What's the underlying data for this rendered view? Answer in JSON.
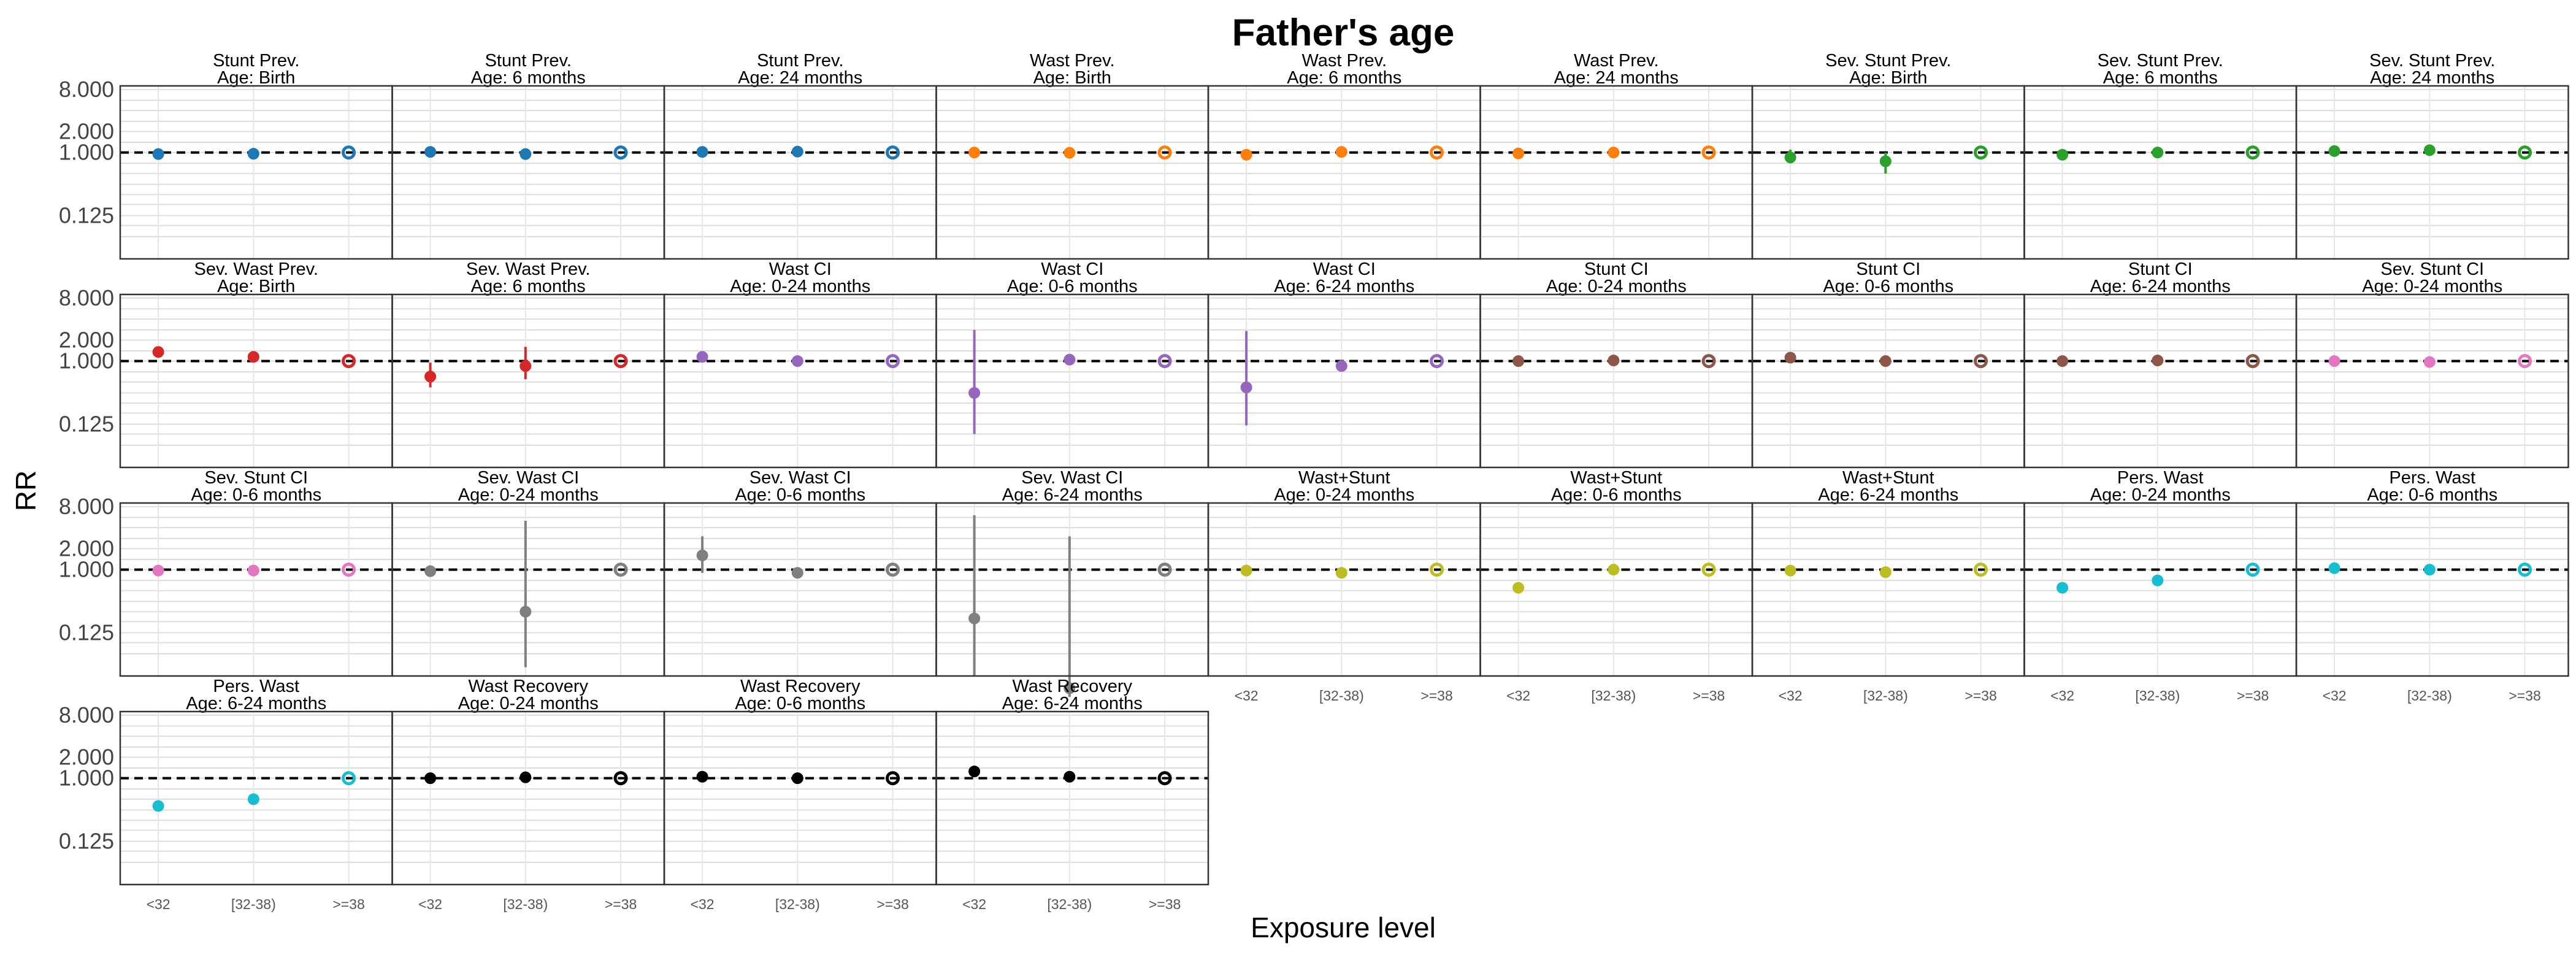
{
  "title": "Father's age",
  "ylabel": "RR",
  "xlabel": "Exposure level",
  "y_tick_labels": [
    "8.000",
    "2.000",
    "1.000",
    "0.125"
  ],
  "colors": {
    "blue": "#1F77B4",
    "orange": "#FF7F0E",
    "green": "#2CA02C",
    "red": "#D62728",
    "purple": "#9467BD",
    "brown": "#8C564B",
    "pink": "#E377C2",
    "gray": "#7F7F7F",
    "olive": "#BCBD22",
    "cyan": "#17BECF",
    "black": "#000000"
  },
  "chart_data": {
    "type": "scatter",
    "description_type": "faceted point-range (RR with 95% CI)",
    "categories": [
      "<32",
      "[32-38)",
      ">=38"
    ],
    "reference_category": ">=38",
    "reference_line": 1,
    "y_scale": "log2",
    "ylim": [
      0.03,
      9
    ],
    "grid": true,
    "facets": [
      {
        "title1": "Stunt Prev.",
        "title2": "Age: Birth",
        "color": "blue",
        "points": [
          {
            "x": "<32",
            "y": 0.95
          },
          {
            "x": "[32-38)",
            "y": 0.96
          },
          {
            "x": ">=38",
            "y": 1
          }
        ]
      },
      {
        "title1": "Stunt Prev.",
        "title2": "Age: 6 months",
        "color": "blue",
        "points": [
          {
            "x": "<32",
            "y": 1.02
          },
          {
            "x": "[32-38)",
            "y": 0.95
          },
          {
            "x": ">=38",
            "y": 1
          }
        ]
      },
      {
        "title1": "Stunt Prev.",
        "title2": "Age: 24 months",
        "color": "blue",
        "points": [
          {
            "x": "<32",
            "y": 1.02
          },
          {
            "x": "[32-38)",
            "y": 1.03
          },
          {
            "x": ">=38",
            "y": 1
          }
        ]
      },
      {
        "title1": "Wast Prev.",
        "title2": "Age: Birth",
        "color": "orange",
        "points": [
          {
            "x": "<32",
            "y": 1.0
          },
          {
            "x": "[32-38)",
            "y": 0.99
          },
          {
            "x": ">=38",
            "y": 1
          }
        ]
      },
      {
        "title1": "Wast Prev.",
        "title2": "Age: 6 months",
        "color": "orange",
        "points": [
          {
            "x": "<32",
            "y": 0.93
          },
          {
            "x": "[32-38)",
            "y": 1.02
          },
          {
            "x": ">=38",
            "y": 1
          }
        ]
      },
      {
        "title1": "Wast Prev.",
        "title2": "Age: 24 months",
        "color": "orange",
        "points": [
          {
            "x": "<32",
            "y": 0.97
          },
          {
            "x": "[32-38)",
            "y": 1.0
          },
          {
            "x": ">=38",
            "y": 1
          }
        ]
      },
      {
        "title1": "Sev. Stunt Prev.",
        "title2": "Age: Birth",
        "color": "green",
        "points": [
          {
            "x": "<32",
            "y": 0.85,
            "lo": 0.7,
            "hi": 1.1
          },
          {
            "x": "[32-38)",
            "y": 0.75,
            "lo": 0.5,
            "hi": 1.0
          },
          {
            "x": ">=38",
            "y": 1
          }
        ]
      },
      {
        "title1": "Sev. Stunt Prev.",
        "title2": "Age: 6 months",
        "color": "green",
        "points": [
          {
            "x": "<32",
            "y": 0.93
          },
          {
            "x": "[32-38)",
            "y": 1.0
          },
          {
            "x": ">=38",
            "y": 1
          }
        ]
      },
      {
        "title1": "Sev. Stunt Prev.",
        "title2": "Age: 24 months",
        "color": "green",
        "points": [
          {
            "x": "<32",
            "y": 1.05
          },
          {
            "x": "[32-38)",
            "y": 1.08
          },
          {
            "x": ">=38",
            "y": 1
          }
        ]
      },
      {
        "title1": "Sev. Wast Prev.",
        "title2": "Age: Birth",
        "color": "red",
        "points": [
          {
            "x": "<32",
            "y": 1.35
          },
          {
            "x": "[32-38)",
            "y": 1.15
          },
          {
            "x": ">=38",
            "y": 1
          }
        ]
      },
      {
        "title1": "Sev. Wast Prev.",
        "title2": "Age: 6 months",
        "color": "red",
        "points": [
          {
            "x": "<32",
            "y": 0.6,
            "lo": 0.42,
            "hi": 0.95
          },
          {
            "x": "[32-38)",
            "y": 0.85,
            "lo": 0.55,
            "hi": 1.6
          },
          {
            "x": ">=38",
            "y": 1
          }
        ]
      },
      {
        "title1": "Wast CI",
        "title2": "Age: 0-24 months",
        "color": "purple",
        "points": [
          {
            "x": "<32",
            "y": 1.15
          },
          {
            "x": "[32-38)",
            "y": 1.0
          },
          {
            "x": ">=38",
            "y": 1
          }
        ]
      },
      {
        "title1": "Wast CI",
        "title2": "Age: 0-6 months",
        "color": "purple",
        "points": [
          {
            "x": "<32",
            "y": 0.35,
            "lo": 0.09,
            "hi": 2.8
          },
          {
            "x": "[32-38)",
            "y": 1.05
          },
          {
            "x": ">=38",
            "y": 1
          }
        ]
      },
      {
        "title1": "Wast CI",
        "title2": "Age: 6-24 months",
        "color": "purple",
        "points": [
          {
            "x": "<32",
            "y": 0.42,
            "lo": 0.12,
            "hi": 2.7
          },
          {
            "x": "[32-38)",
            "y": 0.85
          },
          {
            "x": ">=38",
            "y": 1
          }
        ]
      },
      {
        "title1": "Stunt CI",
        "title2": "Age: 0-24 months",
        "color": "brown",
        "points": [
          {
            "x": "<32",
            "y": 1.0
          },
          {
            "x": "[32-38)",
            "y": 1.02
          },
          {
            "x": ">=38",
            "y": 1
          }
        ]
      },
      {
        "title1": "Stunt CI",
        "title2": "Age: 0-6 months",
        "color": "brown",
        "points": [
          {
            "x": "<32",
            "y": 1.12
          },
          {
            "x": "[32-38)",
            "y": 1.0
          },
          {
            "x": ">=38",
            "y": 1
          }
        ]
      },
      {
        "title1": "Stunt CI",
        "title2": "Age: 6-24 months",
        "color": "brown",
        "points": [
          {
            "x": "<32",
            "y": 1.0
          },
          {
            "x": "[32-38)",
            "y": 1.02
          },
          {
            "x": ">=38",
            "y": 1
          }
        ]
      },
      {
        "title1": "Sev. Stunt CI",
        "title2": "Age: 0-24 months",
        "color": "pink",
        "points": [
          {
            "x": "<32",
            "y": 1.0
          },
          {
            "x": "[32-38)",
            "y": 0.97
          },
          {
            "x": ">=38",
            "y": 1
          }
        ]
      },
      {
        "title1": "Sev. Stunt CI",
        "title2": "Age: 0-6 months",
        "color": "pink",
        "points": [
          {
            "x": "<32",
            "y": 0.97
          },
          {
            "x": "[32-38)",
            "y": 0.97
          },
          {
            "x": ">=38",
            "y": 1
          }
        ]
      },
      {
        "title1": "Sev. Wast CI",
        "title2": "Age: 0-24 months",
        "color": "gray",
        "points": [
          {
            "x": "<32",
            "y": 0.95
          },
          {
            "x": "[32-38)",
            "y": 0.25,
            "lo": 0.04,
            "hi": 5.0
          },
          {
            "x": ">=38",
            "y": 1
          }
        ]
      },
      {
        "title1": "Sev. Wast CI",
        "title2": "Age: 0-6 months",
        "color": "gray",
        "points": [
          {
            "x": "<32",
            "y": 1.6,
            "lo": 0.9,
            "hi": 3.0
          },
          {
            "x": "[32-38)",
            "y": 0.9
          },
          {
            "x": ">=38",
            "y": 1
          }
        ]
      },
      {
        "title1": "Sev. Wast CI",
        "title2": "Age: 6-24 months",
        "color": "gray",
        "points": [
          {
            "x": "<32",
            "y": 0.2,
            "lo": 0.03,
            "hi": 6.0
          },
          {
            "x": "[32-38)",
            "y": 0.02,
            "lo": 0.002,
            "hi": 3.0
          },
          {
            "x": ">=38",
            "y": 1
          }
        ]
      },
      {
        "title1": "Wast+Stunt",
        "title2": "Age: 0-24 months",
        "color": "olive",
        "points": [
          {
            "x": "<32",
            "y": 0.97
          },
          {
            "x": "[32-38)",
            "y": 0.9
          },
          {
            "x": ">=38",
            "y": 1
          }
        ]
      },
      {
        "title1": "Wast+Stunt",
        "title2": "Age: 0-6 months",
        "color": "olive",
        "points": [
          {
            "x": "<32",
            "y": 0.55
          },
          {
            "x": "[32-38)",
            "y": 1.0
          },
          {
            "x": ">=38",
            "y": 1
          }
        ]
      },
      {
        "title1": "Wast+Stunt",
        "title2": "Age: 6-24 months",
        "color": "olive",
        "points": [
          {
            "x": "<32",
            "y": 0.97
          },
          {
            "x": "[32-38)",
            "y": 0.92
          },
          {
            "x": ">=38",
            "y": 1
          }
        ]
      },
      {
        "title1": "Pers. Wast",
        "title2": "Age: 0-24 months",
        "color": "cyan",
        "points": [
          {
            "x": "<32",
            "y": 0.55
          },
          {
            "x": "[32-38)",
            "y": 0.7
          },
          {
            "x": ">=38",
            "y": 1
          }
        ]
      },
      {
        "title1": "Pers. Wast",
        "title2": "Age: 0-6 months",
        "color": "cyan",
        "points": [
          {
            "x": "<32",
            "y": 1.05
          },
          {
            "x": "[32-38)",
            "y": 1.0
          },
          {
            "x": ">=38",
            "y": 1
          }
        ]
      },
      {
        "title1": "Pers. Wast",
        "title2": "Age: 6-24 months",
        "color": "cyan",
        "points": [
          {
            "x": "<32",
            "y": 0.4
          },
          {
            "x": "[32-38)",
            "y": 0.5
          },
          {
            "x": ">=38",
            "y": 1
          }
        ]
      },
      {
        "title1": "Wast Recovery",
        "title2": "Age: 0-24 months",
        "color": "black",
        "points": [
          {
            "x": "<32",
            "y": 1.0
          },
          {
            "x": "[32-38)",
            "y": 1.03
          },
          {
            "x": ">=38",
            "y": 1
          }
        ]
      },
      {
        "title1": "Wast Recovery",
        "title2": "Age: 0-6 months",
        "color": "black",
        "points": [
          {
            "x": "<32",
            "y": 1.05
          },
          {
            "x": "[32-38)",
            "y": 1.0
          },
          {
            "x": ">=38",
            "y": 1
          }
        ]
      },
      {
        "title1": "Wast Recovery",
        "title2": "Age: 6-24 months",
        "color": "black",
        "points": [
          {
            "x": "<32",
            "y": 1.25
          },
          {
            "x": "[32-38)",
            "y": 1.05
          },
          {
            "x": ">=38",
            "y": 1
          }
        ]
      }
    ]
  }
}
